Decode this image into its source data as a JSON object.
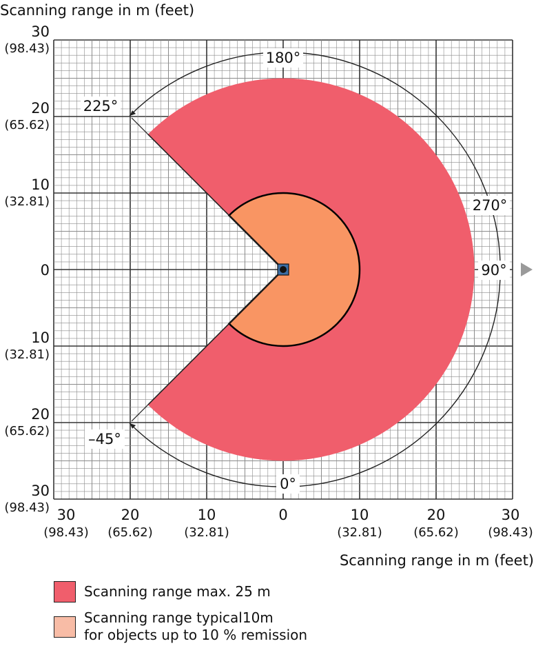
{
  "chart_data": {
    "type": "polar-range-diagram",
    "top_axis_title": "Scanning range in m (feet)",
    "bottom_axis_title": "Scanning range in m (feet)",
    "y_tick_labels": [
      {
        "m": "30",
        "ft": "(98.43)"
      },
      {
        "m": "20",
        "ft": "(65.62)"
      },
      {
        "m": "10",
        "ft": "(32.81)"
      },
      {
        "m": "0",
        "ft": ""
      },
      {
        "m": "10",
        "ft": "(32.81)"
      },
      {
        "m": "20",
        "ft": "(65.62)"
      },
      {
        "m": "30",
        "ft": "(98.43)"
      }
    ],
    "x_tick_labels": [
      {
        "m": "30",
        "ft": "(98.43)"
      },
      {
        "m": "20",
        "ft": "(65.62)"
      },
      {
        "m": "10",
        "ft": "(32.81)"
      },
      {
        "m": "0",
        "ft": ""
      },
      {
        "m": "10",
        "ft": "(32.81)"
      },
      {
        "m": "20",
        "ft": "(65.62)"
      },
      {
        "m": "30",
        "ft": "(98.43)"
      }
    ],
    "angle_labels": [
      "180°",
      "225°",
      "270°",
      "90°",
      "–45°",
      "0°"
    ],
    "max_range_m": 25,
    "typical_range_m": 10,
    "field_of_view_deg": 270,
    "colors": {
      "max_range": "#f05e6c",
      "typical_range": "#f99563",
      "typical_swatch": "#f8bca6",
      "grid": "#7a7a7a"
    }
  },
  "legend": {
    "max_label": "Scanning range max. 25 m",
    "typical_label_line1_prefix": "Scanning range typical",
    "typical_label_line1_value": "10",
    "typical_label_line1_unit": "m",
    "typical_label_line2": "for objects up to 10 % remission"
  }
}
